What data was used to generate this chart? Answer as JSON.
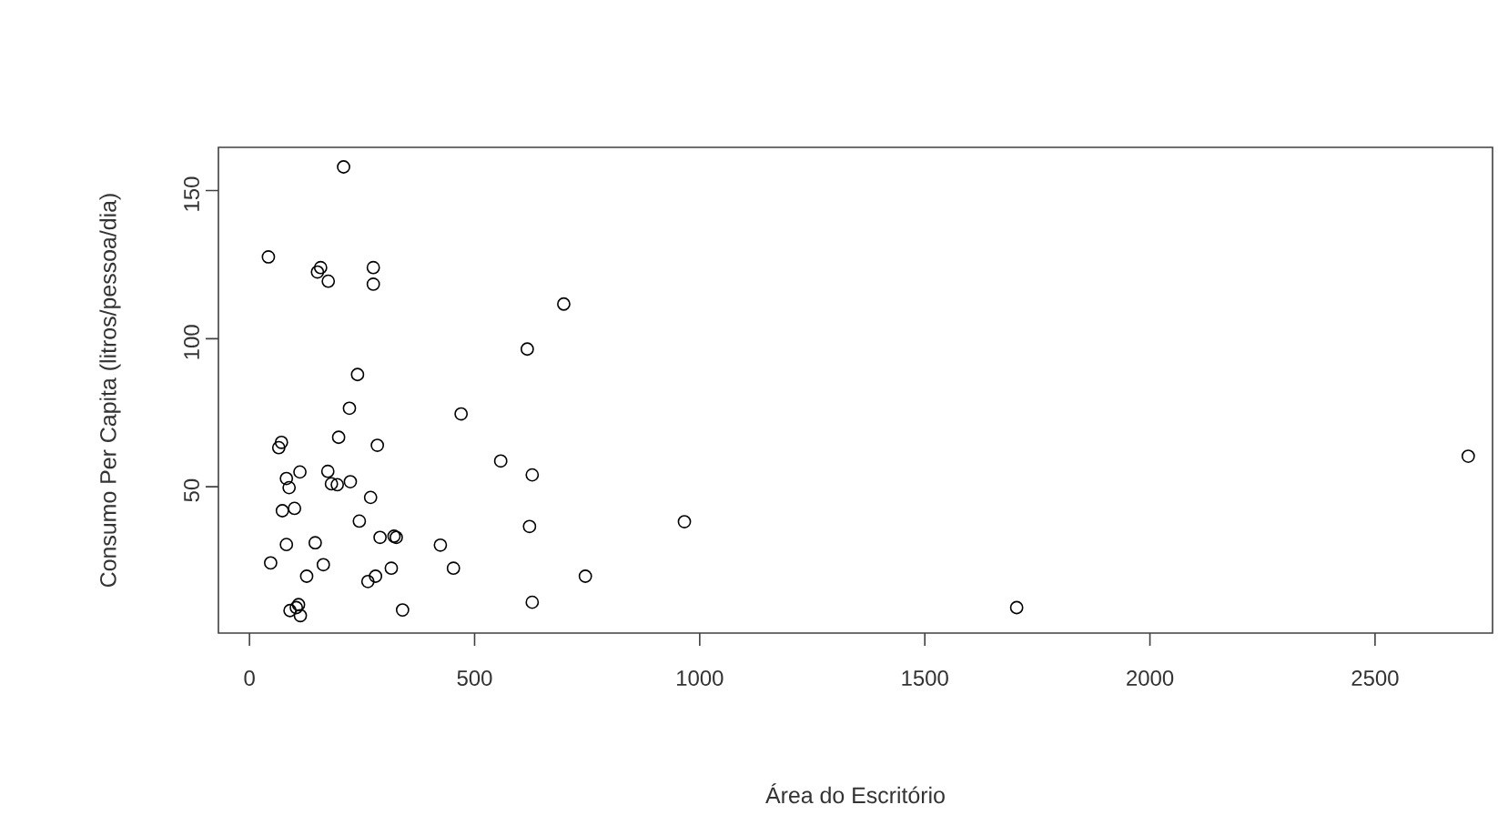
{
  "chart_data": {
    "type": "scatter",
    "xlabel": "Área do Escritório",
    "ylabel": "Consumo Per Capita (litros/pessoa/dia)",
    "xlim": [
      -69,
      2761
    ],
    "ylim": [
      0.6,
      164.6
    ],
    "xticks": [
      0,
      500,
      1000,
      1500,
      2000,
      2500
    ],
    "yticks": [
      50,
      100,
      150
    ],
    "marker": "circle",
    "grid": false,
    "series": [
      {
        "color": "#000000",
        "x": [
          209,
          42,
          158,
          151,
          175,
          275,
          275,
          698,
          617,
          240,
          470,
          222,
          71,
          65,
          198,
          284,
          558,
          628,
          82,
          112,
          88,
          174,
          182,
          195,
          224,
          269,
          73,
          100,
          244,
          622,
          290,
          321,
          326,
          424,
          82,
          146,
          47,
          164,
          453,
          127,
          263,
          280,
          315,
          746,
          90,
          109,
          113,
          104,
          340,
          628,
          966,
          1704,
          2707
        ],
        "values": [
          158,
          127.6,
          124,
          122.5,
          119.4,
          124,
          118.4,
          111.7,
          96.5,
          87.9,
          74.6,
          76.5,
          65,
          63.2,
          66.7,
          64,
          58.7,
          54,
          52.8,
          55,
          49.7,
          55.2,
          51,
          50.7,
          51.7,
          46.4,
          41.9,
          42.7,
          38.4,
          36.6,
          32.9,
          33.3,
          32.9,
          30.3,
          30.5,
          31.1,
          24.3,
          23.7,
          22.5,
          19.8,
          18,
          19.8,
          22.5,
          19.8,
          8.2,
          10.2,
          6.5,
          9.2,
          8.4,
          11,
          38.2,
          9.2,
          60.3
        ]
      }
    ]
  }
}
